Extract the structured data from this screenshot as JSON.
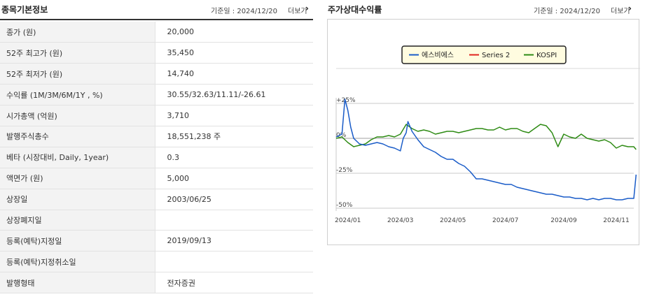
{
  "left": {
    "title": "종목기본정보",
    "base_date": "기준일 : 2024/12/20",
    "more": "더보기",
    "rows": [
      {
        "label": "종가 (원)",
        "value": "20,000"
      },
      {
        "label": "52주 최고가 (원)",
        "value": "35,450"
      },
      {
        "label": "52주 최저가 (원)",
        "value": "14,740"
      },
      {
        "label": "수익률 (1M/3M/6M/1Y , %)",
        "value": "30.55/32.63/11.11/-26.61"
      },
      {
        "label": "시가총액 (억원)",
        "value": "3,710"
      },
      {
        "label": "발행주식총수",
        "value": "18,551,238 주"
      },
      {
        "label": "베타 (시장대비, Daily, 1year)",
        "value": "0.3"
      },
      {
        "label": "액면가 (원)",
        "value": "5,000"
      },
      {
        "label": "상장일",
        "value": "2003/06/25"
      },
      {
        "label": "상장폐지일",
        "value": ""
      },
      {
        "label": "등록(예탁)지정일",
        "value": "2019/09/13"
      },
      {
        "label": "등록(예탁)지정취소일",
        "value": ""
      },
      {
        "label": "발행형태",
        "value": "전자증권"
      }
    ]
  },
  "right": {
    "title": "주가상대수익률",
    "base_date": "기준일 : 2024/12/20",
    "more": "더보기"
  },
  "icons": {
    "more": "chevron-right-icon"
  },
  "chart_data": {
    "type": "line",
    "title": "",
    "xlabel": "",
    "ylabel": "",
    "ylim": [
      -50,
      25
    ],
    "ytick_labels": [
      "+25%",
      "0%",
      "-25%",
      "-50%"
    ],
    "ytick_values": [
      25,
      0,
      -25,
      -50
    ],
    "xtick_labels": [
      "2024/01",
      "2024/03",
      "2024/05",
      "2024/07",
      "2024/09",
      "2024/11"
    ],
    "xlim": [
      0,
      51
    ],
    "xtick_positions": [
      2,
      11,
      20,
      29,
      39,
      48
    ],
    "grid": "horizontal",
    "legend_position": "top-center",
    "series": [
      {
        "name": "에스비에스",
        "color": "#1a5cc8",
        "x": [
          0,
          1,
          1.5,
          2,
          2.5,
          3,
          4,
          5,
          6,
          7,
          8,
          9,
          10,
          11,
          11.5,
          12,
          12.3,
          13,
          14,
          15,
          16,
          17,
          18,
          19,
          20,
          21,
          22,
          23,
          24,
          25,
          26,
          27,
          28,
          29,
          30,
          31,
          32,
          33,
          34,
          35,
          36,
          37,
          38,
          39,
          40,
          41,
          42,
          43,
          44,
          45,
          46,
          47,
          48,
          49,
          50,
          51,
          51.4
        ],
        "values": [
          1,
          3,
          28,
          20,
          8,
          0,
          -4,
          -5,
          -4,
          -3,
          -4,
          -6,
          -7,
          -9,
          0,
          4,
          12,
          5,
          -1,
          -6,
          -8,
          -10,
          -13,
          -15,
          -15,
          -18,
          -20,
          -24,
          -29,
          -29,
          -30,
          -31,
          -32,
          -33,
          -33,
          -35,
          -36,
          -37,
          -38,
          -39,
          -40,
          -40,
          -41,
          -42,
          -42,
          -43,
          -43,
          -44,
          -43,
          -44,
          -43,
          -43,
          -44,
          -44,
          -43,
          -43,
          -26
        ]
      },
      {
        "name": "Series 2",
        "color": "#e0231f",
        "x": [],
        "values": []
      },
      {
        "name": "KOSPI",
        "color": "#2e8b14",
        "x": [
          0,
          1,
          2,
          3,
          4,
          5,
          6,
          7,
          8,
          9,
          10,
          11,
          12,
          13,
          14,
          15,
          16,
          17,
          18,
          19,
          20,
          21,
          22,
          23,
          24,
          25,
          26,
          27,
          28,
          29,
          30,
          31,
          32,
          33,
          34,
          35,
          36,
          37,
          38,
          39,
          40,
          41,
          42,
          43,
          44,
          45,
          46,
          47,
          48,
          49,
          50,
          51,
          51.4
        ],
        "values": [
          0,
          1,
          -3,
          -6,
          -5,
          -4,
          -1,
          1,
          1,
          2,
          1,
          3,
          10,
          7,
          5,
          6,
          5,
          3,
          4,
          5,
          5,
          4,
          5,
          6,
          7,
          7,
          6,
          6,
          8,
          6,
          7,
          7,
          5,
          4,
          7,
          10,
          9,
          4,
          -6,
          3,
          1,
          0,
          3,
          0,
          -1,
          -2,
          -1,
          -3,
          -7,
          -5,
          -6,
          -6,
          -8
        ]
      }
    ]
  }
}
